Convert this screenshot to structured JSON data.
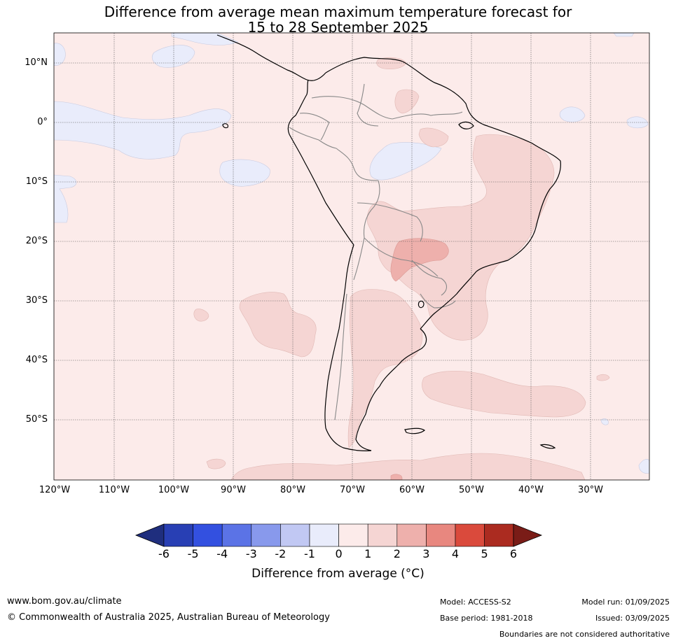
{
  "title": {
    "line1": "Difference from average mean maximum temperature forecast for",
    "line2": "15 to 28 September 2025"
  },
  "map": {
    "lat_labels": [
      "10°N",
      "0°",
      "10°S",
      "20°S",
      "30°S",
      "40°S",
      "50°S"
    ],
    "lon_labels": [
      "120°W",
      "110°W",
      "100°W",
      "90°W",
      "80°W",
      "70°W",
      "60°W",
      "50°W",
      "40°W",
      "30°W"
    ],
    "colors": {
      "neg_1_0": "#e9ecfb",
      "pos_0_1": "#fcebea",
      "pos_1_2": "#f5d5d3",
      "pos_2_3": "#eeb0ac"
    }
  },
  "colorbar": {
    "ticks": [
      "-6",
      "-5",
      "-4",
      "-3",
      "-2",
      "-1",
      "0",
      "1",
      "2",
      "3",
      "4",
      "5",
      "6"
    ],
    "colors": [
      "#1f2e7e",
      "#283fb4",
      "#3350e0",
      "#5b73e6",
      "#8899ec",
      "#c1c8f3",
      "#e9ecfb",
      "#fcebea",
      "#f5d5d3",
      "#eeb0ac",
      "#e8877f",
      "#da4a3c",
      "#ab2b20",
      "#7a1c17"
    ],
    "label": "Difference from average (°C)"
  },
  "footer": {
    "url": "www.bom.gov.au/climate",
    "copyright": "© Commonwealth of Australia 2025, Australian Bureau of Meteorology",
    "model": "Model: ACCESS-S2",
    "base_period": "Base period: 1981-2018",
    "model_run": "Model run: 01/09/2025",
    "issued": "Issued: 03/09/2025",
    "boundaries": "Boundaries are not considered authoritative"
  }
}
